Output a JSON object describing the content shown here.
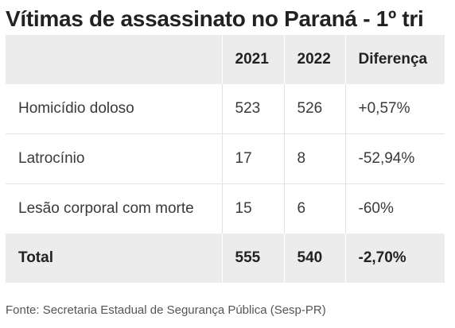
{
  "title": "Vítimas de assassinato no Paraná - 1º tri",
  "table": {
    "headers": [
      "",
      "2021",
      "2022",
      "Diferença"
    ],
    "rows": [
      [
        "Homicídio doloso",
        "523",
        "526",
        "+0,57%"
      ],
      [
        "Latrocínio",
        "17",
        "8",
        "-52,94%"
      ],
      [
        "Lesão corporal com morte",
        "15",
        "6",
        "-60%"
      ]
    ],
    "total": [
      "Total",
      "555",
      "540",
      "-2,70%"
    ]
  },
  "source": "Fonte: Secretaria Estadual de Segurança Pública (Sesp-PR)",
  "colors": {
    "header_bg": "#ececec",
    "row_bg": "#ffffff",
    "text": "#333333"
  }
}
